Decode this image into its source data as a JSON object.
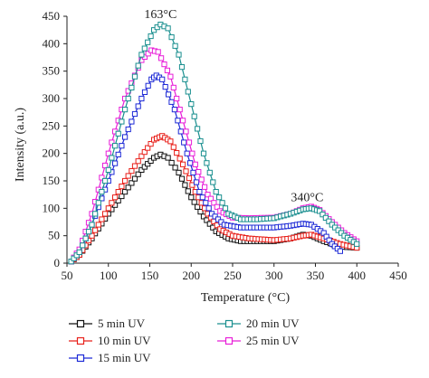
{
  "chart_data": {
    "type": "line",
    "xlabel": "Temperature (°C)",
    "ylabel": "Intensity (a.u.)",
    "xlim": [
      50,
      450
    ],
    "ylim": [
      0,
      450
    ],
    "xticks": [
      50,
      100,
      150,
      200,
      250,
      300,
      350,
      400,
      450
    ],
    "yticks": [
      0,
      50,
      100,
      150,
      200,
      250,
      300,
      350,
      400,
      450
    ],
    "annotations": [
      {
        "text": "163°C",
        "x": 163,
        "y": 437
      },
      {
        "text": "340°C",
        "x": 340,
        "y": 103
      }
    ],
    "series": [
      {
        "name": "5 min UV",
        "color": "#111111",
        "marker": "square",
        "points": [
          [
            55,
            3
          ],
          [
            65,
            15
          ],
          [
            80,
            45
          ],
          [
            100,
            90
          ],
          [
            120,
            130
          ],
          [
            140,
            170
          ],
          [
            155,
            192
          ],
          [
            163,
            198
          ],
          [
            172,
            192
          ],
          [
            185,
            165
          ],
          [
            200,
            120
          ],
          [
            215,
            85
          ],
          [
            230,
            58
          ],
          [
            245,
            45
          ],
          [
            260,
            40
          ],
          [
            280,
            40
          ],
          [
            300,
            40
          ],
          [
            320,
            45
          ],
          [
            335,
            52
          ],
          [
            345,
            50
          ],
          [
            360,
            40
          ],
          [
            380,
            30
          ],
          [
            400,
            28
          ]
        ]
      },
      {
        "name": "10 min UV",
        "color": "#e8211b",
        "marker": "square",
        "points": [
          [
            55,
            3
          ],
          [
            65,
            15
          ],
          [
            80,
            50
          ],
          [
            100,
            100
          ],
          [
            120,
            150
          ],
          [
            140,
            195
          ],
          [
            155,
            225
          ],
          [
            165,
            232
          ],
          [
            175,
            222
          ],
          [
            190,
            180
          ],
          [
            205,
            130
          ],
          [
            220,
            90
          ],
          [
            235,
            62
          ],
          [
            250,
            50
          ],
          [
            270,
            45
          ],
          [
            300,
            42
          ],
          [
            320,
            45
          ],
          [
            335,
            50
          ],
          [
            345,
            52
          ],
          [
            360,
            45
          ],
          [
            380,
            35
          ],
          [
            400,
            28
          ]
        ]
      },
      {
        "name": "15 min UV",
        "color": "#1d2ad6",
        "marker": "square",
        "points": [
          [
            55,
            3
          ],
          [
            65,
            20
          ],
          [
            80,
            70
          ],
          [
            100,
            150
          ],
          [
            120,
            230
          ],
          [
            140,
            300
          ],
          [
            152,
            335
          ],
          [
            158,
            342
          ],
          [
            165,
            335
          ],
          [
            180,
            280
          ],
          [
            195,
            200
          ],
          [
            210,
            130
          ],
          [
            225,
            90
          ],
          [
            240,
            70
          ],
          [
            260,
            65
          ],
          [
            280,
            65
          ],
          [
            300,
            65
          ],
          [
            320,
            68
          ],
          [
            335,
            72
          ],
          [
            345,
            70
          ],
          [
            360,
            55
          ],
          [
            370,
            35
          ],
          [
            380,
            22
          ]
        ]
      },
      {
        "name": "20 min UV",
        "color": "#1a8f8f",
        "marker": "square",
        "points": [
          [
            55,
            3
          ],
          [
            65,
            20
          ],
          [
            80,
            70
          ],
          [
            100,
            170
          ],
          [
            120,
            280
          ],
          [
            140,
            380
          ],
          [
            155,
            425
          ],
          [
            163,
            435
          ],
          [
            172,
            428
          ],
          [
            185,
            380
          ],
          [
            200,
            290
          ],
          [
            215,
            200
          ],
          [
            230,
            130
          ],
          [
            245,
            90
          ],
          [
            260,
            80
          ],
          [
            280,
            80
          ],
          [
            300,
            82
          ],
          [
            320,
            90
          ],
          [
            335,
            98
          ],
          [
            345,
            100
          ],
          [
            355,
            95
          ],
          [
            370,
            70
          ],
          [
            385,
            50
          ],
          [
            400,
            35
          ]
        ]
      },
      {
        "name": "25 min UV",
        "color": "#e81ed8",
        "marker": "square",
        "points": [
          [
            55,
            3
          ],
          [
            65,
            25
          ],
          [
            80,
            90
          ],
          [
            100,
            200
          ],
          [
            120,
            300
          ],
          [
            140,
            370
          ],
          [
            152,
            388
          ],
          [
            160,
            385
          ],
          [
            175,
            340
          ],
          [
            190,
            260
          ],
          [
            205,
            180
          ],
          [
            220,
            125
          ],
          [
            235,
            95
          ],
          [
            250,
            83
          ],
          [
            270,
            82
          ],
          [
            300,
            83
          ],
          [
            320,
            90
          ],
          [
            335,
            100
          ],
          [
            345,
            103
          ],
          [
            355,
            97
          ],
          [
            370,
            75
          ],
          [
            385,
            55
          ],
          [
            400,
            40
          ]
        ]
      }
    ]
  }
}
